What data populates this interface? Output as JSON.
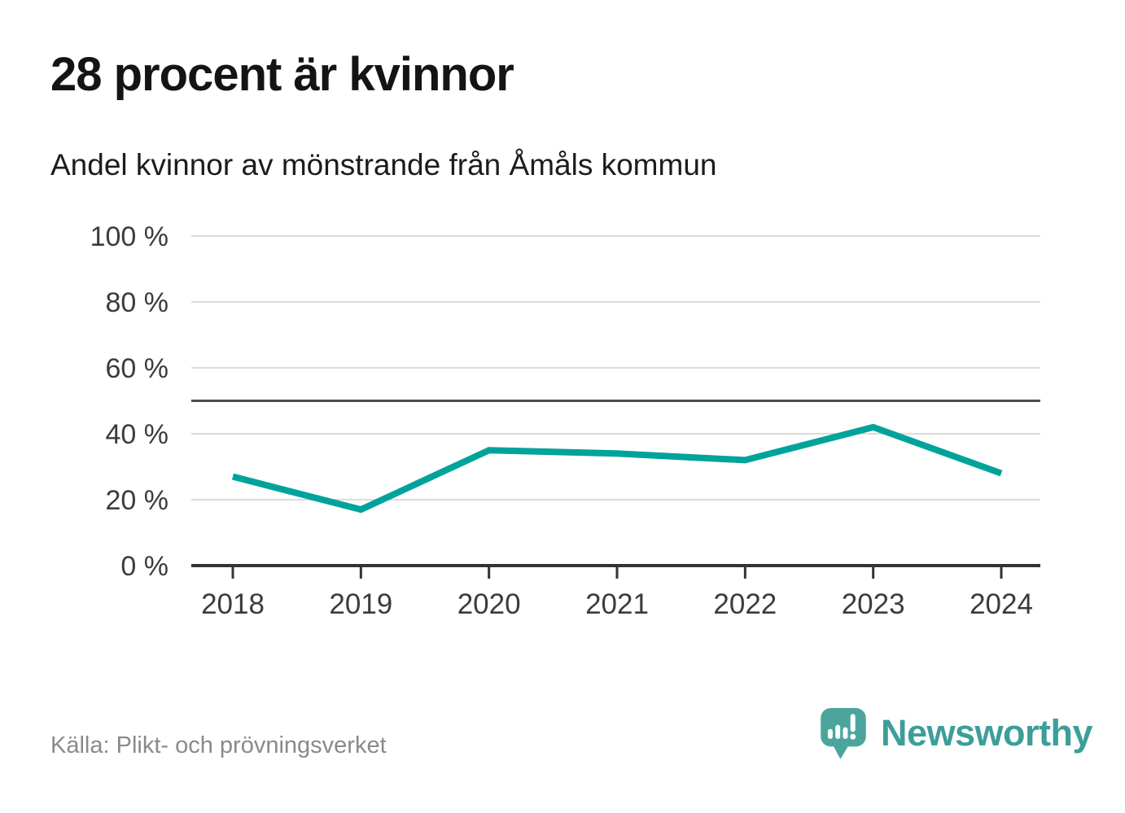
{
  "header": {
    "title": "28 procent är kvinnor",
    "subtitle": "Andel kvinnor av mönstrande från Åmåls kommun"
  },
  "footer": {
    "source": "Källa: Plikt- och prövningsverket",
    "brand": "Newsworthy"
  },
  "colors": {
    "accent_teal": "#00a39b",
    "brand_text_teal": "#3d9e99",
    "logo_bubble_teal": "#4ba59d",
    "gridline_gray": "#dcdcdc",
    "reference_dark": "#4d4d4d",
    "axis_dark": "#333333",
    "label_gray": "#3c3c3c"
  },
  "chart_data": {
    "type": "line",
    "title": "28 procent är kvinnor",
    "subtitle": "Andel kvinnor av mönstrande från Åmåls kommun",
    "x": [
      2018,
      2019,
      2020,
      2021,
      2022,
      2023,
      2024
    ],
    "values": [
      27,
      17,
      35,
      34,
      32,
      42,
      28
    ],
    "unit": "%",
    "xlabel": "",
    "ylabel": "",
    "ylim": [
      0,
      100
    ],
    "yticks": [
      0,
      20,
      40,
      60,
      80,
      100
    ],
    "ytick_format": "{v} %",
    "reference_line": 50,
    "grid": true,
    "legend": false,
    "line_color": "#00a39b",
    "grid_color": "#dcdcdc",
    "reference_color": "#4d4d4d",
    "axis_color": "#333333",
    "label_color": "#3c3c3c"
  }
}
